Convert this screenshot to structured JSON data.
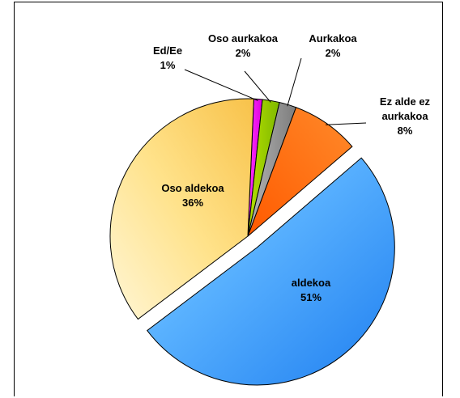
{
  "chart_data": {
    "type": "pie",
    "title": "",
    "slices": [
      {
        "label": "Ed/Ee",
        "value": 1,
        "value_label": "1%",
        "color": "#ff00ff"
      },
      {
        "label": "Oso aurkakoa",
        "value": 2,
        "value_label": "2%",
        "color": "#99cc00"
      },
      {
        "label": "Aurkakoa",
        "value": 2,
        "value_label": "2%",
        "color": "#969696"
      },
      {
        "label": "Ez alde ez aurkakoa",
        "label_lines": [
          "Ez alde ez",
          "aurkakoa"
        ],
        "value": 8,
        "value_label": "8%",
        "color": "#ff6600"
      },
      {
        "label": "aldekoa",
        "value": 51,
        "value_label": "51%",
        "color": "#3399ff"
      },
      {
        "label": "Oso aldekoa",
        "value": 36,
        "value_label": "36%",
        "color": "#ffcc66"
      }
    ],
    "exploded_slice": "aldekoa"
  }
}
